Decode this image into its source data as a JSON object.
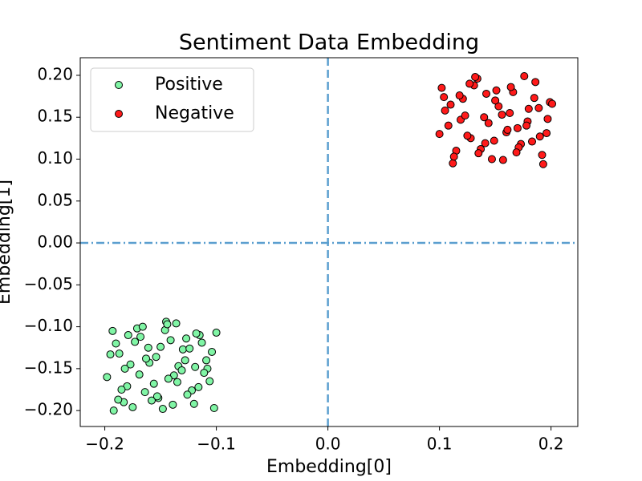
{
  "chart_data": {
    "type": "scatter",
    "title": "Sentiment Data Embedding",
    "x_label": "Embedding[0]",
    "y_label": "Embedding[1]",
    "xlim": [
      -0.222,
      0.224
    ],
    "ylim": [
      -0.219,
      0.221
    ],
    "xticks": [
      {
        "value": -0.2,
        "label": "−0.2"
      },
      {
        "value": -0.1,
        "label": "−0.1"
      },
      {
        "value": 0,
        "label": "0.0"
      },
      0.1,
      0.2
    ],
    "yticks": [
      {
        "value": -0.2,
        "label": "−0.20"
      },
      {
        "value": -0.15,
        "label": "−0.15"
      },
      {
        "value": -0.1,
        "label": "−0.10"
      },
      {
        "value": -0.05,
        "label": "−0.05"
      },
      {
        "value": 0,
        "label": "0.00"
      },
      {
        "value": 0.05,
        "label": "0.05"
      },
      {
        "value": 0.1,
        "label": "0.10"
      },
      {
        "value": 0.15,
        "label": "0.15"
      },
      {
        "value": 0.2,
        "label": "0.20"
      }
    ],
    "legend": "upper left",
    "reference_lines": [
      {
        "axis": "x",
        "value": 0,
        "style": "dashed",
        "color": "#5b9fcf"
      },
      {
        "axis": "y",
        "value": 0,
        "style": "dashdot",
        "color": "#5b9fcf"
      }
    ],
    "series": [
      {
        "name": "Positive",
        "color": "#80f5a5",
        "x": [
          -0.193,
          -0.187,
          -0.18,
          -0.175,
          -0.168,
          -0.16,
          -0.152,
          -0.145,
          -0.138,
          -0.13,
          -0.122,
          -0.115,
          -0.108,
          -0.102,
          -0.198,
          -0.19,
          -0.183,
          -0.171,
          -0.163,
          -0.156,
          -0.148,
          -0.141,
          -0.134,
          -0.126,
          -0.118,
          -0.111,
          -0.104,
          -0.195,
          -0.185,
          -0.177,
          -0.166,
          -0.158,
          -0.15,
          -0.143,
          -0.136,
          -0.128,
          -0.12,
          -0.113,
          -0.106,
          -0.1,
          -0.192,
          -0.182,
          -0.173,
          -0.164,
          -0.154,
          -0.146,
          -0.139,
          -0.131,
          -0.124,
          -0.116,
          -0.109,
          -0.188,
          -0.179,
          -0.169,
          -0.161,
          -0.153,
          -0.144,
          -0.135,
          -0.127,
          -0.119
        ],
        "values": [
          -0.105,
          -0.132,
          -0.171,
          -0.196,
          -0.112,
          -0.143,
          -0.185,
          -0.094,
          -0.158,
          -0.127,
          -0.176,
          -0.11,
          -0.15,
          -0.197,
          -0.16,
          -0.12,
          -0.19,
          -0.102,
          -0.138,
          -0.168,
          -0.198,
          -0.116,
          -0.147,
          -0.181,
          -0.108,
          -0.155,
          -0.13,
          -0.133,
          -0.175,
          -0.145,
          -0.1,
          -0.188,
          -0.124,
          -0.162,
          -0.096,
          -0.14,
          -0.192,
          -0.119,
          -0.165,
          -0.107,
          -0.2,
          -0.15,
          -0.118,
          -0.178,
          -0.136,
          -0.104,
          -0.193,
          -0.152,
          -0.126,
          -0.172,
          -0.14,
          -0.187,
          -0.11,
          -0.157,
          -0.125,
          -0.183,
          -0.097,
          -0.166,
          -0.114,
          -0.148
        ]
      },
      {
        "name": "Negative",
        "color": "#ff1a1a",
        "x": [
          0.102,
          0.108,
          0.115,
          0.121,
          0.128,
          0.134,
          0.14,
          0.147,
          0.153,
          0.16,
          0.166,
          0.173,
          0.179,
          0.186,
          0.192,
          0.199,
          0.105,
          0.112,
          0.118,
          0.125,
          0.131,
          0.137,
          0.144,
          0.15,
          0.157,
          0.163,
          0.17,
          0.176,
          0.183,
          0.189,
          0.196,
          0.1,
          0.11,
          0.119,
          0.127,
          0.135,
          0.142,
          0.149,
          0.156,
          0.164,
          0.171,
          0.178,
          0.185,
          0.193,
          0.201,
          0.104,
          0.113,
          0.123,
          0.132,
          0.141,
          0.151,
          0.161,
          0.169,
          0.18,
          0.19,
          0.197
        ],
        "values": [
          0.185,
          0.14,
          0.11,
          0.172,
          0.125,
          0.196,
          0.15,
          0.1,
          0.163,
          0.132,
          0.18,
          0.118,
          0.145,
          0.192,
          0.105,
          0.168,
          0.158,
          0.095,
          0.176,
          0.128,
          0.188,
          0.112,
          0.143,
          0.17,
          0.099,
          0.155,
          0.137,
          0.199,
          0.121,
          0.161,
          0.131,
          0.13,
          0.165,
          0.147,
          0.19,
          0.107,
          0.178,
          0.122,
          0.153,
          0.186,
          0.114,
          0.14,
          0.173,
          0.094,
          0.166,
          0.174,
          0.103,
          0.152,
          0.198,
          0.119,
          0.182,
          0.135,
          0.108,
          0.16,
          0.127,
          0.148
        ]
      }
    ]
  }
}
